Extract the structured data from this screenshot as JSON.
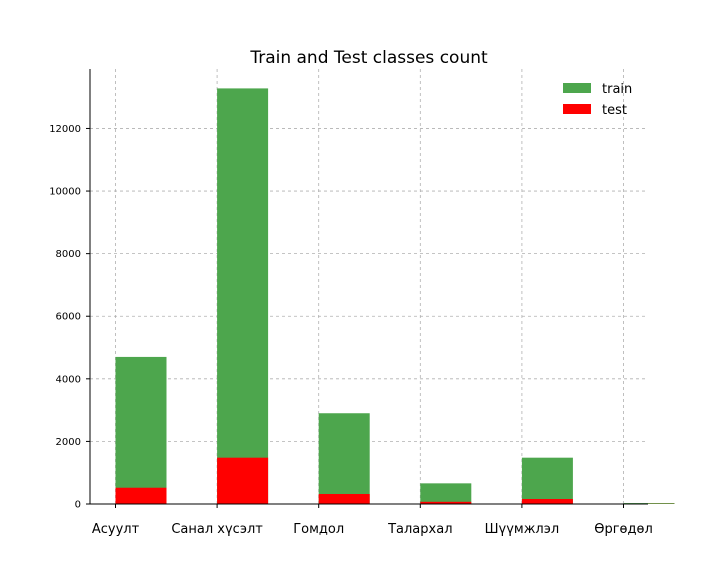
{
  "chart_data": {
    "type": "bar",
    "title": "Train and Test classes count",
    "xlabel": "",
    "ylabel": "",
    "categories": [
      "Асуулт",
      "Санал хүсэлт",
      "Гомдол",
      "Талархал",
      "Шүүмжлэл",
      "Өргөдөл"
    ],
    "series": [
      {
        "name": "train",
        "color": "#4da64d",
        "values": [
          4700,
          13280,
          2900,
          660,
          1480,
          30
        ]
      },
      {
        "name": "test",
        "color": "#ff0000",
        "values": [
          520,
          1480,
          320,
          70,
          160,
          5
        ]
      }
    ],
    "stacking": "overlay",
    "ylim": [
      0,
      13900
    ],
    "yticks": [
      0,
      2000,
      4000,
      6000,
      8000,
      10000,
      12000
    ],
    "grid": true,
    "legend_position": "top-right"
  }
}
